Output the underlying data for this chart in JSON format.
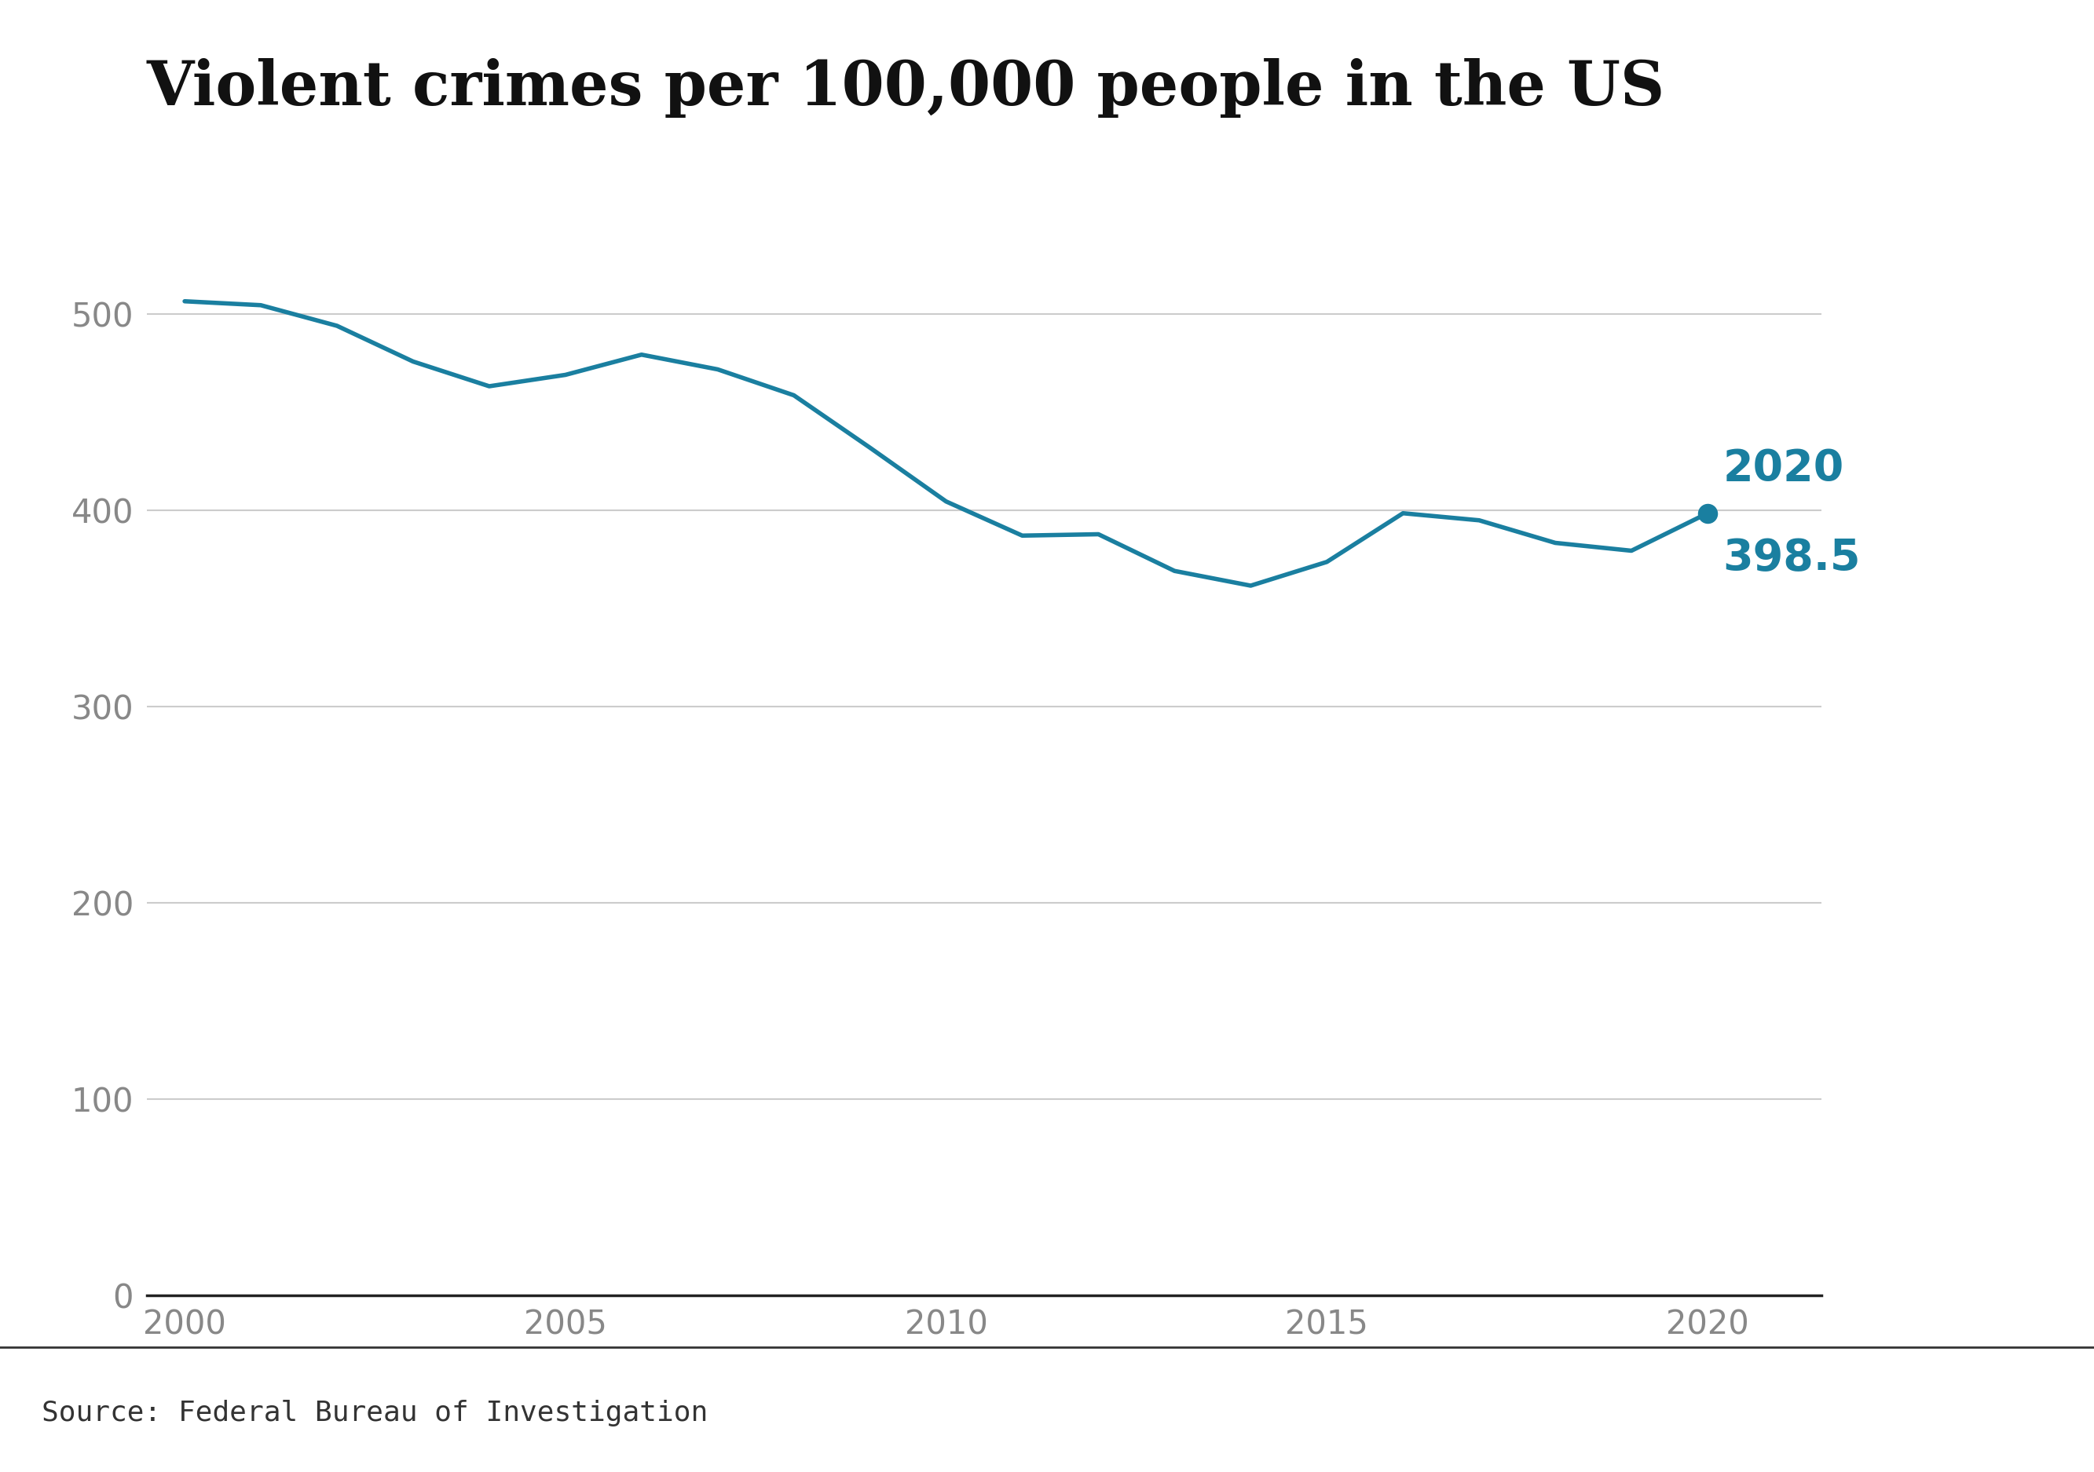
{
  "title": "Violent crimes per 100,000 people in the US",
  "source": "Source: Federal Bureau of Investigation",
  "years": [
    2000,
    2001,
    2002,
    2003,
    2004,
    2005,
    2006,
    2007,
    2008,
    2009,
    2010,
    2011,
    2012,
    2013,
    2014,
    2015,
    2016,
    2017,
    2018,
    2019,
    2020
  ],
  "values": [
    506.5,
    504.5,
    494.0,
    475.8,
    463.2,
    469.0,
    479.3,
    471.8,
    458.6,
    431.9,
    404.5,
    387.1,
    387.8,
    369.1,
    361.6,
    373.7,
    398.5,
    394.9,
    383.4,
    379.4,
    398.5
  ],
  "line_color": "#1a7fa0",
  "dot_color": "#1a7fa0",
  "background_color": "#ffffff",
  "grid_color": "#cccccc",
  "tick_color": "#888888",
  "spine_color": "#222222",
  "title_color": "#111111",
  "source_color": "#333333",
  "title_fontsize": 56,
  "tick_fontsize": 30,
  "annotation_year_fontsize": 40,
  "annotation_value_fontsize": 40,
  "source_fontsize": 26,
  "bbc_fontsize": 26,
  "ylim": [
    0,
    540
  ],
  "yticks": [
    0,
    100,
    200,
    300,
    400,
    500
  ],
  "xlim": [
    1999.5,
    2021.5
  ],
  "xticks": [
    2000,
    2005,
    2010,
    2015,
    2020
  ],
  "label_year": "2020",
  "label_value": "398.5",
  "line_width": 4.0,
  "dot_size": 300
}
